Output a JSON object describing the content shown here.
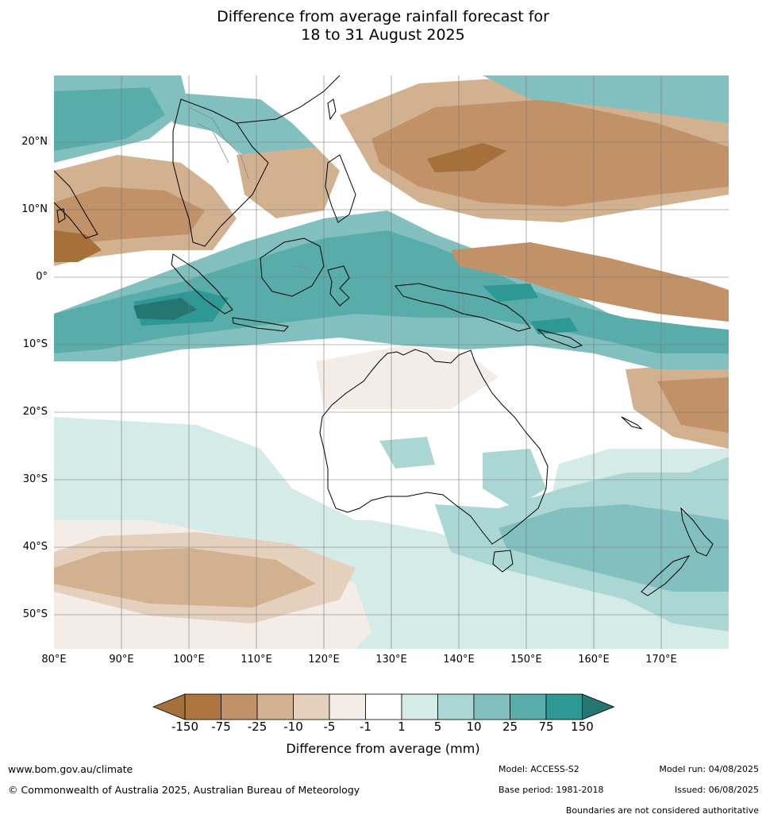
{
  "title": {
    "line1": "Difference from average rainfall forecast for",
    "line2": "18 to 31 August 2025"
  },
  "map": {
    "lon_range": [
      80,
      180
    ],
    "lat_range": [
      -55,
      30
    ],
    "lat_ticks": [
      "20°N",
      "10°N",
      "0°",
      "10°S",
      "20°S",
      "30°S",
      "40°S",
      "50°S"
    ],
    "lon_ticks": [
      "80°E",
      "90°E",
      "100°E",
      "110°E",
      "120°E",
      "130°E",
      "140°E",
      "150°E",
      "160°E",
      "170°E"
    ],
    "grid": true
  },
  "legend": {
    "title": "Difference from average (mm)",
    "ticks": [
      "-150",
      "-75",
      "-25",
      "-10",
      "-5",
      "-1",
      "1",
      "5",
      "10",
      "25",
      "75",
      "150"
    ],
    "colors": [
      "#a5703a",
      "#ae753f",
      "#c19167",
      "#d2b190",
      "#e4d0bd",
      "#f4ece6",
      "#ffffff",
      "#d4ebe8",
      "#aad6d4",
      "#82c0bf",
      "#58adaa",
      "#2e9894",
      "#257672"
    ]
  },
  "footer": {
    "website": "www.bom.gov.au/climate",
    "copyright": "© Commonwealth of Australia 2025, Australian Bureau of Meteorology",
    "model": "Model: ACCESS-S2",
    "base_period": "Base period: 1981-2018",
    "model_run": "Model run: 04/08/2025",
    "issued": "Issued: 06/08/2025",
    "boundaries_note": "Boundaries are not considered authoritative"
  }
}
